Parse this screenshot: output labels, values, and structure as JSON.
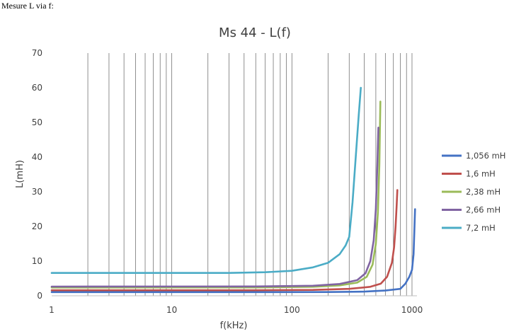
{
  "caption": "Mesure L via f:",
  "chart_data": {
    "type": "line",
    "title": "Ms 44 - L(f)",
    "xlabel": "f(kHz)",
    "ylabel": "L(mH)",
    "x_scale": "log",
    "xlim": [
      1,
      1100
    ],
    "ylim": [
      0,
      70
    ],
    "y_ticks": [
      0,
      10,
      20,
      30,
      40,
      50,
      60,
      70
    ],
    "x_tick_labels": [
      {
        "value": 1,
        "label": "1"
      },
      {
        "value": 10,
        "label": "10"
      },
      {
        "value": 100,
        "label": "100"
      },
      {
        "value": 1000,
        "label": "1000"
      }
    ],
    "vertical_grid": true,
    "horizontal_grid": false,
    "legend_position": "right",
    "series": [
      {
        "name": "1,056 mH",
        "color": "#4472C4",
        "points": [
          [
            1,
            1.06
          ],
          [
            50,
            1.06
          ],
          [
            200,
            1.08
          ],
          [
            400,
            1.2
          ],
          [
            600,
            1.5
          ],
          [
            800,
            2.0
          ],
          [
            880,
            3.5
          ],
          [
            950,
            5.5
          ],
          [
            1000,
            7.5
          ],
          [
            1030,
            12
          ],
          [
            1045,
            18
          ],
          [
            1060,
            25
          ]
        ]
      },
      {
        "name": "1,6 mH",
        "color": "#C0504D",
        "points": [
          [
            1,
            1.6
          ],
          [
            50,
            1.6
          ],
          [
            150,
            1.7
          ],
          [
            300,
            2.0
          ],
          [
            450,
            2.6
          ],
          [
            550,
            3.5
          ],
          [
            620,
            5.5
          ],
          [
            680,
            9.5
          ],
          [
            710,
            14
          ],
          [
            730,
            20
          ],
          [
            745,
            26
          ],
          [
            755,
            30.5
          ]
        ]
      },
      {
        "name": "2,38 mH",
        "color": "#9BBB59",
        "points": [
          [
            1,
            2.38
          ],
          [
            50,
            2.4
          ],
          [
            150,
            2.6
          ],
          [
            250,
            3.0
          ],
          [
            350,
            3.8
          ],
          [
            420,
            5.5
          ],
          [
            470,
            9
          ],
          [
            500,
            15
          ],
          [
            520,
            24
          ],
          [
            535,
            38
          ],
          [
            545,
            56
          ]
        ]
      },
      {
        "name": "2,66 mH",
        "color": "#8064A2",
        "points": [
          [
            1,
            2.66
          ],
          [
            50,
            2.7
          ],
          [
            150,
            2.9
          ],
          [
            250,
            3.4
          ],
          [
            350,
            4.5
          ],
          [
            410,
            6.5
          ],
          [
            450,
            10
          ],
          [
            480,
            16
          ],
          [
            500,
            25
          ],
          [
            515,
            38
          ],
          [
            525,
            48.5
          ]
        ]
      },
      {
        "name": "7,2 mH",
        "color": "#4BACC6",
        "points": [
          [
            1,
            6.6
          ],
          [
            30,
            6.6
          ],
          [
            60,
            6.8
          ],
          [
            100,
            7.2
          ],
          [
            150,
            8.2
          ],
          [
            200,
            9.5
          ],
          [
            250,
            12
          ],
          [
            280,
            14.5
          ],
          [
            300,
            17
          ],
          [
            320,
            27
          ],
          [
            340,
            40
          ],
          [
            360,
            52
          ],
          [
            375,
            60
          ]
        ]
      }
    ]
  }
}
